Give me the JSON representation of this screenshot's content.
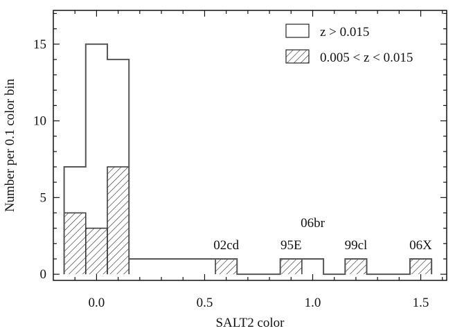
{
  "chart_data": {
    "type": "bar",
    "bin_width": 0.1,
    "bins": [
      {
        "x0": -0.15,
        "x1": -0.05
      },
      {
        "x0": -0.05,
        "x1": 0.05
      },
      {
        "x0": 0.05,
        "x1": 0.15
      },
      {
        "x0": 0.15,
        "x1": 0.25
      },
      {
        "x0": 0.25,
        "x1": 0.35
      },
      {
        "x0": 0.35,
        "x1": 0.45
      },
      {
        "x0": 0.45,
        "x1": 0.55
      },
      {
        "x0": 0.55,
        "x1": 0.65
      },
      {
        "x0": 0.65,
        "x1": 0.75
      },
      {
        "x0": 0.75,
        "x1": 0.85
      },
      {
        "x0": 0.85,
        "x1": 0.95
      },
      {
        "x0": 0.95,
        "x1": 1.05
      },
      {
        "x0": 1.05,
        "x1": 1.15
      },
      {
        "x0": 1.15,
        "x1": 1.25
      },
      {
        "x0": 1.25,
        "x1": 1.35
      },
      {
        "x0": 1.35,
        "x1": 1.45
      },
      {
        "x0": 1.45,
        "x1": 1.55
      }
    ],
    "series": [
      {
        "name": "z > 0.015",
        "style": "open",
        "values": [
          7,
          15,
          14,
          1,
          1,
          1,
          1,
          1,
          0,
          0,
          1,
          1,
          0,
          1,
          0,
          0,
          1
        ]
      },
      {
        "name": "0.005 < z < 0.015",
        "style": "hatched",
        "values": [
          4,
          3,
          7,
          0,
          0,
          0,
          0,
          1,
          0,
          0,
          1,
          0,
          0,
          1,
          0,
          0,
          1
        ]
      }
    ],
    "xlabel": "SALT2 color",
    "ylabel": "Number per 0.1 color bin",
    "xlim": [
      -0.2,
      1.62
    ],
    "ylim": [
      -0.4,
      17.2
    ],
    "xticks": [
      0.0,
      0.5,
      1.0,
      1.5
    ],
    "xtick_labels": [
      "0.0",
      "0.5",
      "1.0",
      "1.5"
    ],
    "yticks": [
      0,
      5,
      10,
      15
    ],
    "ytick_labels": [
      "0",
      "5",
      "10",
      "15"
    ],
    "legend_position": "top-right",
    "annotations": [
      {
        "text": "02cd",
        "x": 0.6,
        "y": 1
      },
      {
        "text": "95E",
        "x": 0.9,
        "y": 1
      },
      {
        "text": "06br",
        "x": 1.0,
        "y": 1
      },
      {
        "text": "99cl",
        "x": 1.2,
        "y": 1
      },
      {
        "text": "06X",
        "x": 1.5,
        "y": 1
      }
    ],
    "colors": {
      "line": "#555555",
      "hatch": "#333333",
      "axis": "#111111"
    }
  }
}
